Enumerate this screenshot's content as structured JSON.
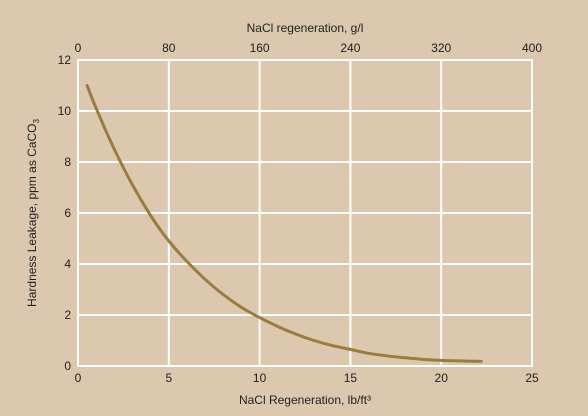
{
  "colors": {
    "background": "#dbc8ae",
    "grid": "#ffffff",
    "curve": "#9b7c3c",
    "text": "#222222"
  },
  "chart_data": {
    "type": "line",
    "title": "",
    "grid": true,
    "xlabel": "NaCl Regeneration, lb/ft³",
    "x2label": "NaCl regeneration, g/l",
    "ylabel_main": "Hardness Leakage, ppm as CaCO",
    "ylabel_subscript": "3",
    "xlim": [
      0,
      25
    ],
    "x2lim": [
      0,
      400
    ],
    "ylim": [
      0,
      12
    ],
    "x_ticks": [
      0,
      5,
      10,
      15,
      20,
      25
    ],
    "x2_ticks": [
      0,
      80,
      160,
      240,
      320,
      400
    ],
    "y_ticks": [
      0,
      2,
      4,
      6,
      8,
      10,
      12
    ],
    "series": [
      {
        "x": [
          0.5,
          1,
          2,
          3,
          4,
          5,
          6,
          7,
          8,
          9,
          10,
          11,
          12,
          13,
          14,
          15,
          16,
          17,
          18,
          19,
          20,
          21,
          22.2
        ],
        "y": [
          11.0,
          10.1,
          8.5,
          7.1,
          5.9,
          4.9,
          4.1,
          3.4,
          2.8,
          2.3,
          1.9,
          1.55,
          1.25,
          1.0,
          0.8,
          0.65,
          0.5,
          0.4,
          0.32,
          0.26,
          0.22,
          0.2,
          0.18
        ]
      }
    ]
  }
}
